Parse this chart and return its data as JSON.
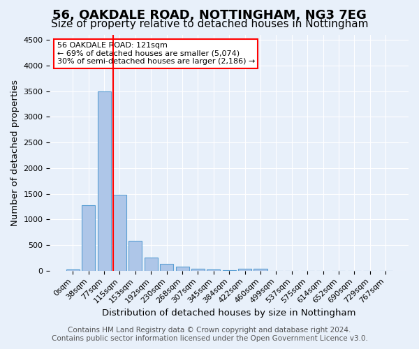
{
  "title": "56, OAKDALE ROAD, NOTTINGHAM, NG3 7EG",
  "subtitle": "Size of property relative to detached houses in Nottingham",
  "xlabel": "Distribution of detached houses by size in Nottingham",
  "ylabel": "Number of detached properties",
  "footnote1": "Contains HM Land Registry data © Crown copyright and database right 2024.",
  "footnote2": "Contains public sector information licensed under the Open Government Licence v3.0.",
  "categories": [
    "0sqm",
    "38sqm",
    "77sqm",
    "115sqm",
    "153sqm",
    "192sqm",
    "230sqm",
    "268sqm",
    "307sqm",
    "345sqm",
    "384sqm",
    "422sqm",
    "460sqm",
    "499sqm",
    "537sqm",
    "575sqm",
    "614sqm",
    "652sqm",
    "690sqm",
    "729sqm",
    "767sqm"
  ],
  "values": [
    30,
    1270,
    3500,
    1480,
    580,
    250,
    130,
    80,
    40,
    20,
    15,
    40,
    40,
    0,
    0,
    0,
    0,
    0,
    0,
    0,
    0
  ],
  "bar_color": "#aec6e8",
  "bar_edgecolor": "#5a9fd4",
  "bar_linewidth": 0.8,
  "red_line_x": 2.6,
  "annotation_text1": "56 OAKDALE ROAD: 121sqm",
  "annotation_text2": "← 69% of detached houses are smaller (5,074)",
  "annotation_text3": "30% of semi-detached houses are larger (2,186) →",
  "annotation_box_color": "white",
  "annotation_border_color": "red",
  "red_line_color": "red",
  "ylim": [
    0,
    4600
  ],
  "yticks": [
    0,
    500,
    1000,
    1500,
    2000,
    2500,
    3000,
    3500,
    4000,
    4500
  ],
  "background_color": "#e8f0fa",
  "plot_bg_color": "#e8f0fa",
  "grid_color": "white",
  "title_fontsize": 13,
  "subtitle_fontsize": 11,
  "label_fontsize": 9.5,
  "tick_fontsize": 8,
  "footnote_fontsize": 7.5
}
